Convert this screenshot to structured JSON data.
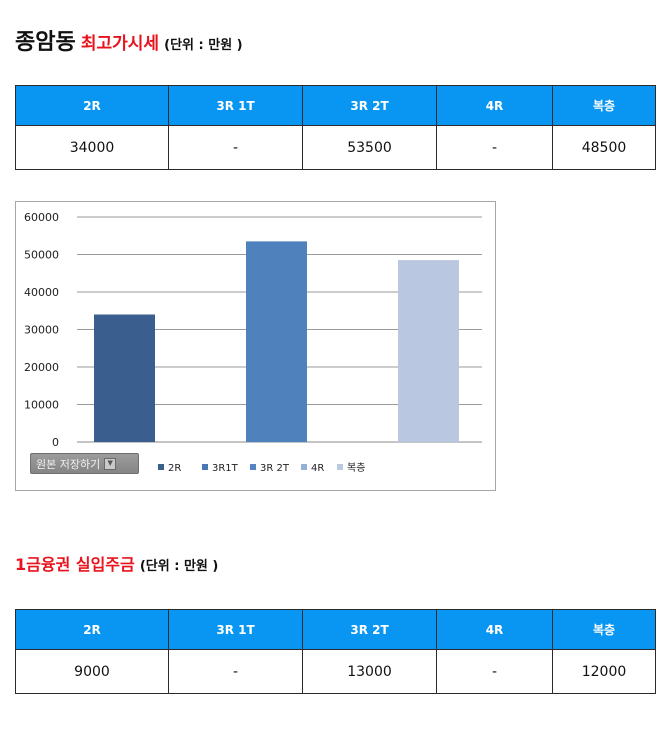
{
  "section1": {
    "title": "종암동",
    "subtitle": "최고가시세",
    "unit": "(단위 : 만원 )",
    "table": {
      "headers": [
        "2R",
        "3R 1T",
        "3R 2T",
        "4R",
        "복층"
      ],
      "values": [
        "34000",
        "-",
        "53500",
        "-",
        "48500"
      ]
    }
  },
  "section2": {
    "subtitle": "1금융권 실입주금",
    "unit": "(단위 : 만원 )",
    "table": {
      "headers": [
        "2R",
        "3R 1T",
        "3R 2T",
        "4R",
        "복층"
      ],
      "values": [
        "9000",
        "-",
        "13000",
        "-",
        "12000"
      ]
    }
  },
  "chart": {
    "save_label": "원본 저장하기",
    "save_icon": "dropdown-arrow-icon"
  },
  "chart_data": {
    "type": "bar",
    "categories": [
      "2R",
      "3R1T",
      "3R 2T",
      "4R",
      "복층"
    ],
    "values": [
      34000,
      null,
      53500,
      null,
      48500
    ],
    "colors": [
      "#3a5f8f",
      "#4a77b3",
      "#5585c5",
      "#95b0d8",
      "#bac8e0"
    ],
    "bar_colors": [
      "#3a5f8f",
      "#4f81bd",
      "#b9c7e0"
    ],
    "title": "",
    "xlabel": "",
    "ylabel": "",
    "ylim": [
      0,
      60000
    ],
    "yticks": [
      0,
      10000,
      20000,
      30000,
      40000,
      50000,
      60000
    ],
    "grid": true,
    "legend": "bottom"
  }
}
